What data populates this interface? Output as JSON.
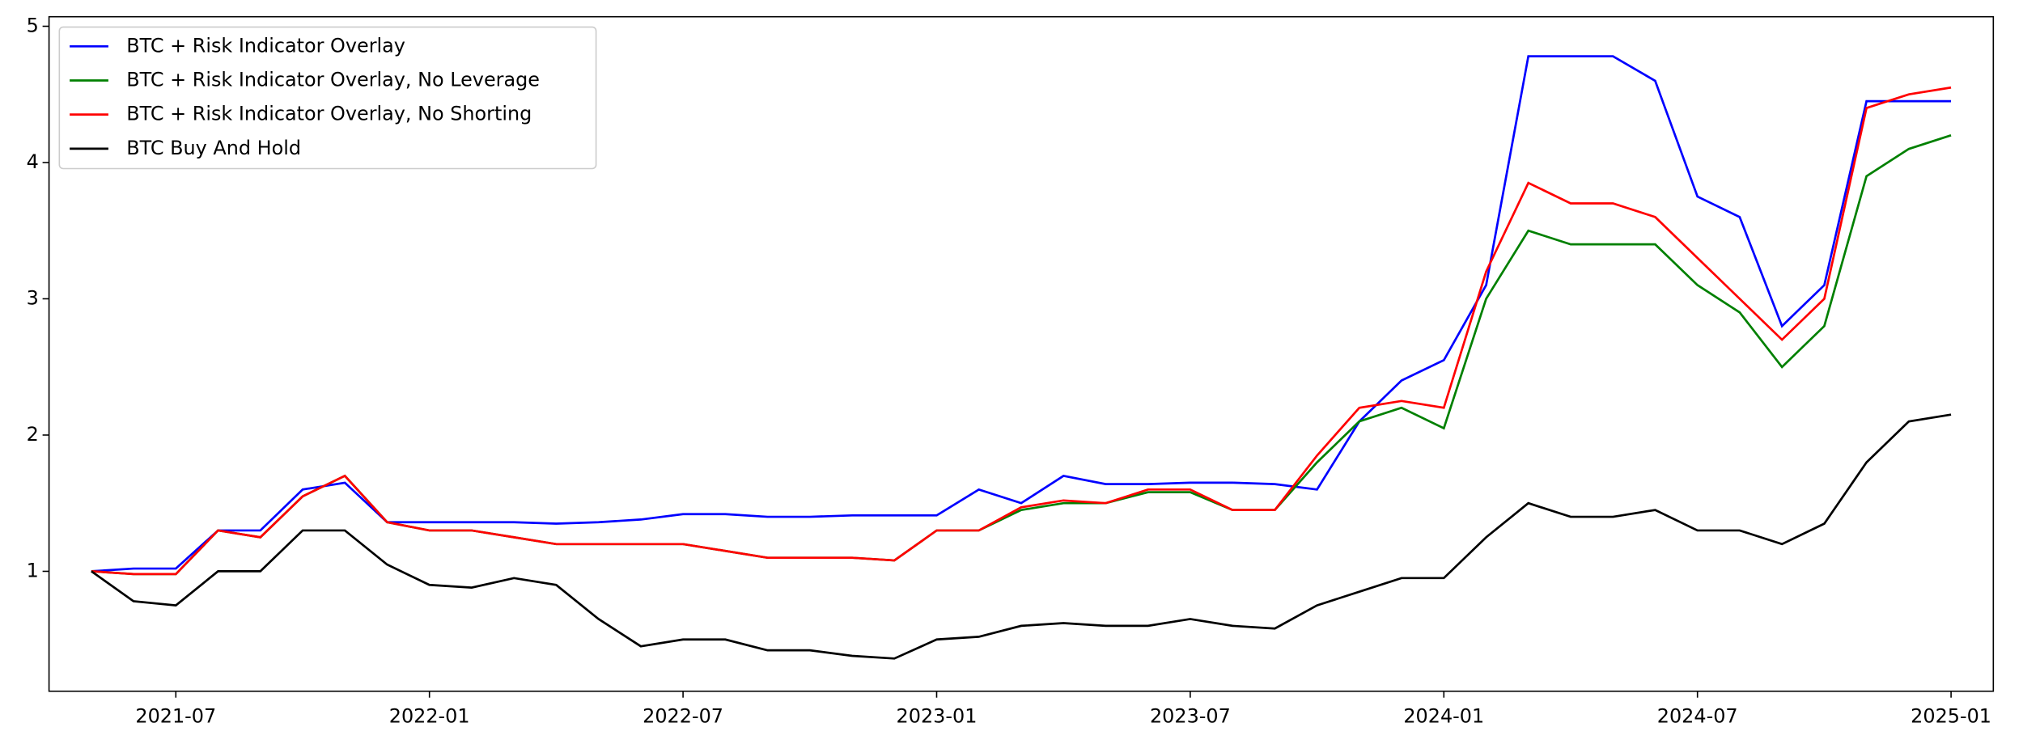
{
  "chart_data": {
    "type": "line",
    "x": [
      "2021-05",
      "2021-06",
      "2021-07",
      "2021-08",
      "2021-09",
      "2021-10",
      "2021-11",
      "2021-12",
      "2022-01",
      "2022-02",
      "2022-03",
      "2022-04",
      "2022-05",
      "2022-06",
      "2022-07",
      "2022-08",
      "2022-09",
      "2022-10",
      "2022-11",
      "2022-12",
      "2023-01",
      "2023-02",
      "2023-03",
      "2023-04",
      "2023-05",
      "2023-06",
      "2023-07",
      "2023-08",
      "2023-09",
      "2023-10",
      "2023-11",
      "2023-12",
      "2024-01",
      "2024-02",
      "2024-03",
      "2024-04",
      "2024-05",
      "2024-06",
      "2024-07",
      "2024-08",
      "2024-09",
      "2024-10",
      "2024-11",
      "2024-12",
      "2025-01"
    ],
    "series": [
      {
        "name": "BTC + Risk Indicator Overlay",
        "color": "#0000ff",
        "values": [
          1.0,
          1.02,
          1.02,
          1.3,
          1.3,
          1.6,
          1.65,
          1.36,
          1.36,
          1.36,
          1.36,
          1.35,
          1.36,
          1.38,
          1.42,
          1.42,
          1.4,
          1.4,
          1.41,
          1.41,
          1.41,
          1.6,
          1.5,
          1.7,
          1.64,
          1.64,
          1.65,
          1.65,
          1.64,
          1.6,
          2.1,
          2.4,
          2.55,
          3.1,
          4.78,
          4.78,
          4.78,
          4.6,
          3.75,
          3.6,
          2.8,
          3.1,
          4.45,
          4.45,
          4.45
        ]
      },
      {
        "name": "BTC + Risk Indicator Overlay, No Leverage",
        "color": "#008000",
        "values": [
          1.0,
          0.98,
          0.98,
          1.3,
          1.25,
          1.55,
          1.7,
          1.36,
          1.3,
          1.3,
          1.25,
          1.2,
          1.2,
          1.2,
          1.2,
          1.15,
          1.1,
          1.1,
          1.1,
          1.08,
          1.3,
          1.3,
          1.45,
          1.5,
          1.5,
          1.58,
          1.58,
          1.45,
          1.45,
          1.8,
          2.1,
          2.2,
          2.05,
          3.0,
          3.5,
          3.4,
          3.4,
          3.4,
          3.1,
          2.9,
          2.5,
          2.8,
          3.9,
          4.1,
          4.2
        ]
      },
      {
        "name": "BTC + Risk Indicator Overlay, No Shorting",
        "color": "#ff0000",
        "values": [
          1.0,
          0.98,
          0.98,
          1.3,
          1.25,
          1.55,
          1.7,
          1.36,
          1.3,
          1.3,
          1.25,
          1.2,
          1.2,
          1.2,
          1.2,
          1.15,
          1.1,
          1.1,
          1.1,
          1.08,
          1.3,
          1.3,
          1.47,
          1.52,
          1.5,
          1.6,
          1.6,
          1.45,
          1.45,
          1.85,
          2.2,
          2.25,
          2.2,
          3.2,
          3.85,
          3.7,
          3.7,
          3.6,
          3.3,
          3.0,
          2.7,
          3.0,
          4.4,
          4.5,
          4.55
        ]
      },
      {
        "name": "BTC Buy And Hold",
        "color": "#000000",
        "values": [
          1.0,
          0.78,
          0.75,
          1.0,
          1.0,
          1.3,
          1.3,
          1.05,
          0.9,
          0.88,
          0.95,
          0.9,
          0.65,
          0.45,
          0.5,
          0.5,
          0.42,
          0.42,
          0.38,
          0.36,
          0.5,
          0.52,
          0.6,
          0.62,
          0.6,
          0.6,
          0.65,
          0.6,
          0.58,
          0.75,
          0.85,
          0.95,
          0.95,
          1.25,
          1.5,
          1.4,
          1.4,
          1.45,
          1.3,
          1.3,
          1.2,
          1.35,
          1.8,
          2.1,
          2.15
        ]
      }
    ],
    "xlim": [
      "2021-04",
      "2025-02"
    ],
    "xticks": [
      "2021-07",
      "2022-01",
      "2022-07",
      "2023-01",
      "2023-07",
      "2024-01",
      "2024-07",
      "2025-01"
    ],
    "ylim": [
      0.12,
      5.07
    ],
    "yticks": [
      1,
      2,
      3,
      4,
      5
    ],
    "legend": "upper left"
  }
}
